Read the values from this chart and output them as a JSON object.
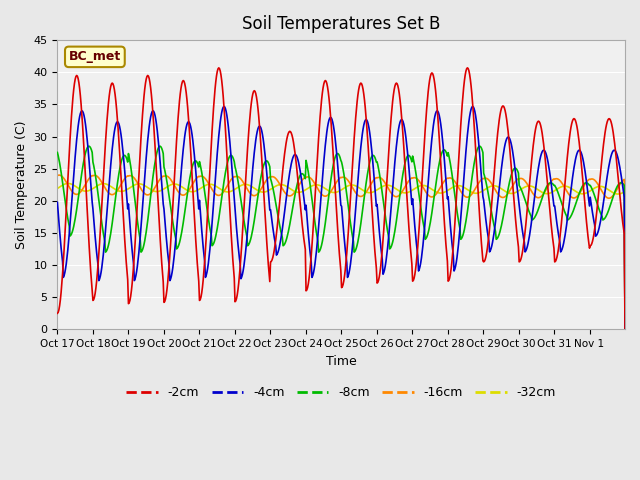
{
  "title": "Soil Temperatures Set B",
  "xlabel": "Time",
  "ylabel": "Soil Temperature (C)",
  "ylim": [
    0,
    45
  ],
  "xlim_days": 16,
  "annotation": "BC_met",
  "x_tick_labels": [
    "Oct 17",
    "Oct 18",
    "Oct 19",
    "Oct 20",
    "Oct 21",
    "Oct 22",
    "Oct 23",
    "Oct 24",
    "Oct 25",
    "Oct 26",
    "Oct 27",
    "Oct 28",
    "Oct 29",
    "Oct 30",
    "Oct 31",
    "Nov 1"
  ],
  "series_labels": [
    "-2cm",
    "-4cm",
    "-8cm",
    "-16cm",
    "-32cm"
  ],
  "series_colors": [
    "#dd0000",
    "#0000cc",
    "#00bb00",
    "#ff8800",
    "#dddd00"
  ],
  "series_linewidths": [
    1.5,
    1.5,
    1.5,
    1.5,
    1.5
  ],
  "bg_color": "#e8e8e8",
  "plot_bg_color": "#f0f0f0",
  "grid_color": "#ffffff",
  "n_days": 16,
  "points_per_day": 48,
  "depth2_amplitude": 18,
  "depth2_min": 3,
  "depth4_amplitude": 14,
  "depth4_min": 5,
  "depth8_amplitude": 10,
  "depth8_min": 8,
  "depth16_amplitude": 3,
  "depth16_mean": 21,
  "depth32_amplitude": 1.2,
  "depth32_mean": 21.5,
  "phase_shift_4": 0.15,
  "phase_shift_8": 0.35,
  "phase_shift_16": 0.55,
  "phase_shift_32": 0.8,
  "amplitude_decay": 0.92
}
